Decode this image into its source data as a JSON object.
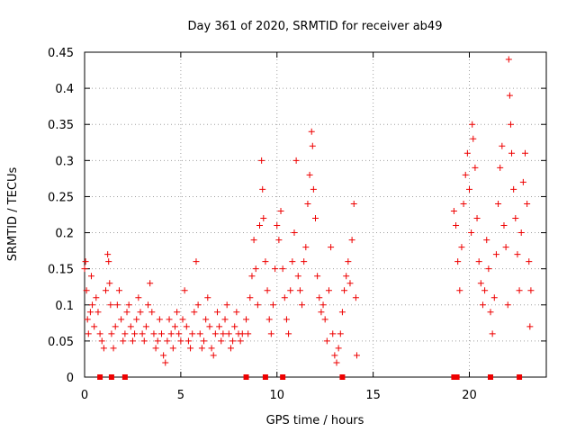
{
  "chart_data": {
    "type": "scatter",
    "title": "Day 361 of 2020, SRMTID for receiver ab49",
    "xlabel": "GPS time / hours",
    "ylabel": "SRMTID / TECUs",
    "xlim": [
      0,
      24
    ],
    "ylim": [
      0,
      0.45
    ],
    "xticks": [
      0,
      5,
      10,
      15,
      20
    ],
    "xtick_labels": [
      "0",
      "5",
      "10",
      "15",
      "20"
    ],
    "yticks": [
      0,
      0.05,
      0.1,
      0.15,
      0.2,
      0.25,
      0.3,
      0.35,
      0.4,
      0.45
    ],
    "ytick_labels": [
      "0",
      "0.05",
      "0.1",
      "0.15",
      "0.2",
      "0.25",
      "0.3",
      "0.35",
      "0.4",
      "0.45"
    ],
    "grid": true,
    "marker": "+",
    "color": "#ee0000",
    "series": [
      {
        "name": "SRMTID",
        "points": [
          [
            0.0,
            0.15
          ],
          [
            0.05,
            0.16
          ],
          [
            0.1,
            0.12
          ],
          [
            0.15,
            0.08
          ],
          [
            0.2,
            0.06
          ],
          [
            0.3,
            0.09
          ],
          [
            0.35,
            0.14
          ],
          [
            0.4,
            0.1
          ],
          [
            0.5,
            0.07
          ],
          [
            0.6,
            0.11
          ],
          [
            0.7,
            0.09
          ],
          [
            0.8,
            0.06
          ],
          [
            0.9,
            0.05
          ],
          [
            1.0,
            0.04
          ],
          [
            1.1,
            0.12
          ],
          [
            1.2,
            0.17
          ],
          [
            1.25,
            0.16
          ],
          [
            1.3,
            0.13
          ],
          [
            1.35,
            0.1
          ],
          [
            1.4,
            0.06
          ],
          [
            1.5,
            0.04
          ],
          [
            1.6,
            0.07
          ],
          [
            1.7,
            0.1
          ],
          [
            1.8,
            0.12
          ],
          [
            1.9,
            0.08
          ],
          [
            2.0,
            0.05
          ],
          [
            2.1,
            0.06
          ],
          [
            2.2,
            0.09
          ],
          [
            2.3,
            0.1
          ],
          [
            2.4,
            0.07
          ],
          [
            2.5,
            0.05
          ],
          [
            2.6,
            0.06
          ],
          [
            2.7,
            0.08
          ],
          [
            2.8,
            0.11
          ],
          [
            2.9,
            0.09
          ],
          [
            3.0,
            0.06
          ],
          [
            3.1,
            0.05
          ],
          [
            3.2,
            0.07
          ],
          [
            3.3,
            0.1
          ],
          [
            3.4,
            0.13
          ],
          [
            3.5,
            0.09
          ],
          [
            3.6,
            0.06
          ],
          [
            3.7,
            0.04
          ],
          [
            3.8,
            0.05
          ],
          [
            3.9,
            0.08
          ],
          [
            4.0,
            0.06
          ],
          [
            4.1,
            0.03
          ],
          [
            4.2,
            0.02
          ],
          [
            4.3,
            0.05
          ],
          [
            4.4,
            0.08
          ],
          [
            4.5,
            0.06
          ],
          [
            4.6,
            0.04
          ],
          [
            4.7,
            0.07
          ],
          [
            4.8,
            0.09
          ],
          [
            4.9,
            0.06
          ],
          [
            5.0,
            0.05
          ],
          [
            5.1,
            0.08
          ],
          [
            5.2,
            0.12
          ],
          [
            5.3,
            0.07
          ],
          [
            5.4,
            0.05
          ],
          [
            5.5,
            0.04
          ],
          [
            5.6,
            0.06
          ],
          [
            5.7,
            0.09
          ],
          [
            5.8,
            0.16
          ],
          [
            5.9,
            0.1
          ],
          [
            6.0,
            0.06
          ],
          [
            6.1,
            0.04
          ],
          [
            6.2,
            0.05
          ],
          [
            6.3,
            0.08
          ],
          [
            6.4,
            0.11
          ],
          [
            6.5,
            0.07
          ],
          [
            6.6,
            0.04
          ],
          [
            6.7,
            0.03
          ],
          [
            6.8,
            0.06
          ],
          [
            6.9,
            0.09
          ],
          [
            7.0,
            0.07
          ],
          [
            7.1,
            0.05
          ],
          [
            7.2,
            0.06
          ],
          [
            7.3,
            0.08
          ],
          [
            7.4,
            0.1
          ],
          [
            7.5,
            0.06
          ],
          [
            7.6,
            0.04
          ],
          [
            7.7,
            0.05
          ],
          [
            7.8,
            0.07
          ],
          [
            7.9,
            0.09
          ],
          [
            8.0,
            0.06
          ],
          [
            8.1,
            0.05
          ],
          [
            8.2,
            0.06
          ],
          [
            8.4,
            0.08
          ],
          [
            8.5,
            0.06
          ],
          [
            8.6,
            0.11
          ],
          [
            8.7,
            0.14
          ],
          [
            8.8,
            0.19
          ],
          [
            8.9,
            0.15
          ],
          [
            9.0,
            0.1
          ],
          [
            9.1,
            0.21
          ],
          [
            9.2,
            0.3
          ],
          [
            9.25,
            0.26
          ],
          [
            9.3,
            0.22
          ],
          [
            9.4,
            0.16
          ],
          [
            9.5,
            0.12
          ],
          [
            9.6,
            0.08
          ],
          [
            9.7,
            0.06
          ],
          [
            9.8,
            0.1
          ],
          [
            9.9,
            0.15
          ],
          [
            10.0,
            0.21
          ],
          [
            10.1,
            0.19
          ],
          [
            10.2,
            0.23
          ],
          [
            10.3,
            0.15
          ],
          [
            10.4,
            0.11
          ],
          [
            10.5,
            0.08
          ],
          [
            10.6,
            0.06
          ],
          [
            10.7,
            0.12
          ],
          [
            10.8,
            0.16
          ],
          [
            10.9,
            0.2
          ],
          [
            11.0,
            0.3
          ],
          [
            11.1,
            0.14
          ],
          [
            11.2,
            0.12
          ],
          [
            11.3,
            0.1
          ],
          [
            11.4,
            0.16
          ],
          [
            11.5,
            0.18
          ],
          [
            11.6,
            0.24
          ],
          [
            11.7,
            0.28
          ],
          [
            11.8,
            0.34
          ],
          [
            11.85,
            0.32
          ],
          [
            11.9,
            0.26
          ],
          [
            12.0,
            0.22
          ],
          [
            12.1,
            0.14
          ],
          [
            12.2,
            0.11
          ],
          [
            12.3,
            0.09
          ],
          [
            12.4,
            0.1
          ],
          [
            12.5,
            0.08
          ],
          [
            12.6,
            0.05
          ],
          [
            12.7,
            0.12
          ],
          [
            12.8,
            0.18
          ],
          [
            12.9,
            0.06
          ],
          [
            13.0,
            0.03
          ],
          [
            13.1,
            0.02
          ],
          [
            13.2,
            0.04
          ],
          [
            13.3,
            0.06
          ],
          [
            13.4,
            0.09
          ],
          [
            13.5,
            0.12
          ],
          [
            13.6,
            0.14
          ],
          [
            13.7,
            0.16
          ],
          [
            13.8,
            0.13
          ],
          [
            13.9,
            0.19
          ],
          [
            14.0,
            0.24
          ],
          [
            14.1,
            0.11
          ],
          [
            14.15,
            0.03
          ],
          [
            19.2,
            0.23
          ],
          [
            19.3,
            0.21
          ],
          [
            19.4,
            0.16
          ],
          [
            19.5,
            0.12
          ],
          [
            19.6,
            0.18
          ],
          [
            19.7,
            0.24
          ],
          [
            19.8,
            0.28
          ],
          [
            19.9,
            0.31
          ],
          [
            20.0,
            0.26
          ],
          [
            20.1,
            0.2
          ],
          [
            20.15,
            0.35
          ],
          [
            20.2,
            0.33
          ],
          [
            20.3,
            0.29
          ],
          [
            20.4,
            0.22
          ],
          [
            20.5,
            0.16
          ],
          [
            20.6,
            0.13
          ],
          [
            20.7,
            0.1
          ],
          [
            20.8,
            0.12
          ],
          [
            20.9,
            0.19
          ],
          [
            21.0,
            0.15
          ],
          [
            21.1,
            0.09
          ],
          [
            21.2,
            0.06
          ],
          [
            21.3,
            0.11
          ],
          [
            21.4,
            0.17
          ],
          [
            21.5,
            0.24
          ],
          [
            21.6,
            0.29
          ],
          [
            21.7,
            0.32
          ],
          [
            21.8,
            0.21
          ],
          [
            21.9,
            0.18
          ],
          [
            22.0,
            0.1
          ],
          [
            22.05,
            0.44
          ],
          [
            22.1,
            0.39
          ],
          [
            22.15,
            0.35
          ],
          [
            22.2,
            0.31
          ],
          [
            22.3,
            0.26
          ],
          [
            22.4,
            0.22
          ],
          [
            22.5,
            0.17
          ],
          [
            22.6,
            0.12
          ],
          [
            22.7,
            0.2
          ],
          [
            22.8,
            0.27
          ],
          [
            22.9,
            0.31
          ],
          [
            23.0,
            0.24
          ],
          [
            23.1,
            0.16
          ],
          [
            23.15,
            0.07
          ],
          [
            23.2,
            0.12
          ]
        ]
      }
    ],
    "gap_markers_x": [
      0.8,
      1.4,
      2.1,
      8.4,
      9.4,
      10.3,
      13.4,
      19.2,
      19.35,
      21.1,
      22.6
    ]
  }
}
